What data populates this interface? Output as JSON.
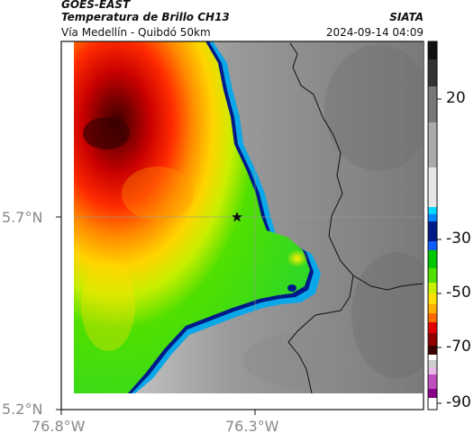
{
  "header": {
    "satellite": "GOES-EAST",
    "product": "Temperatura de Brillo CH13",
    "region": "Vía Medellín - Quibdó 50km",
    "org": "SIATA",
    "datetime": "2024-09-14 04:09"
  },
  "axes": {
    "lat_ticks": [
      "5.7°N",
      "5.2°N"
    ],
    "lon_ticks": [
      "76.8°W",
      "76.3°W"
    ]
  },
  "colorbar": {
    "labels": [
      "20",
      "-30",
      "-50",
      "-70",
      "-90"
    ]
  },
  "marker": {
    "icon": "star-icon"
  }
}
